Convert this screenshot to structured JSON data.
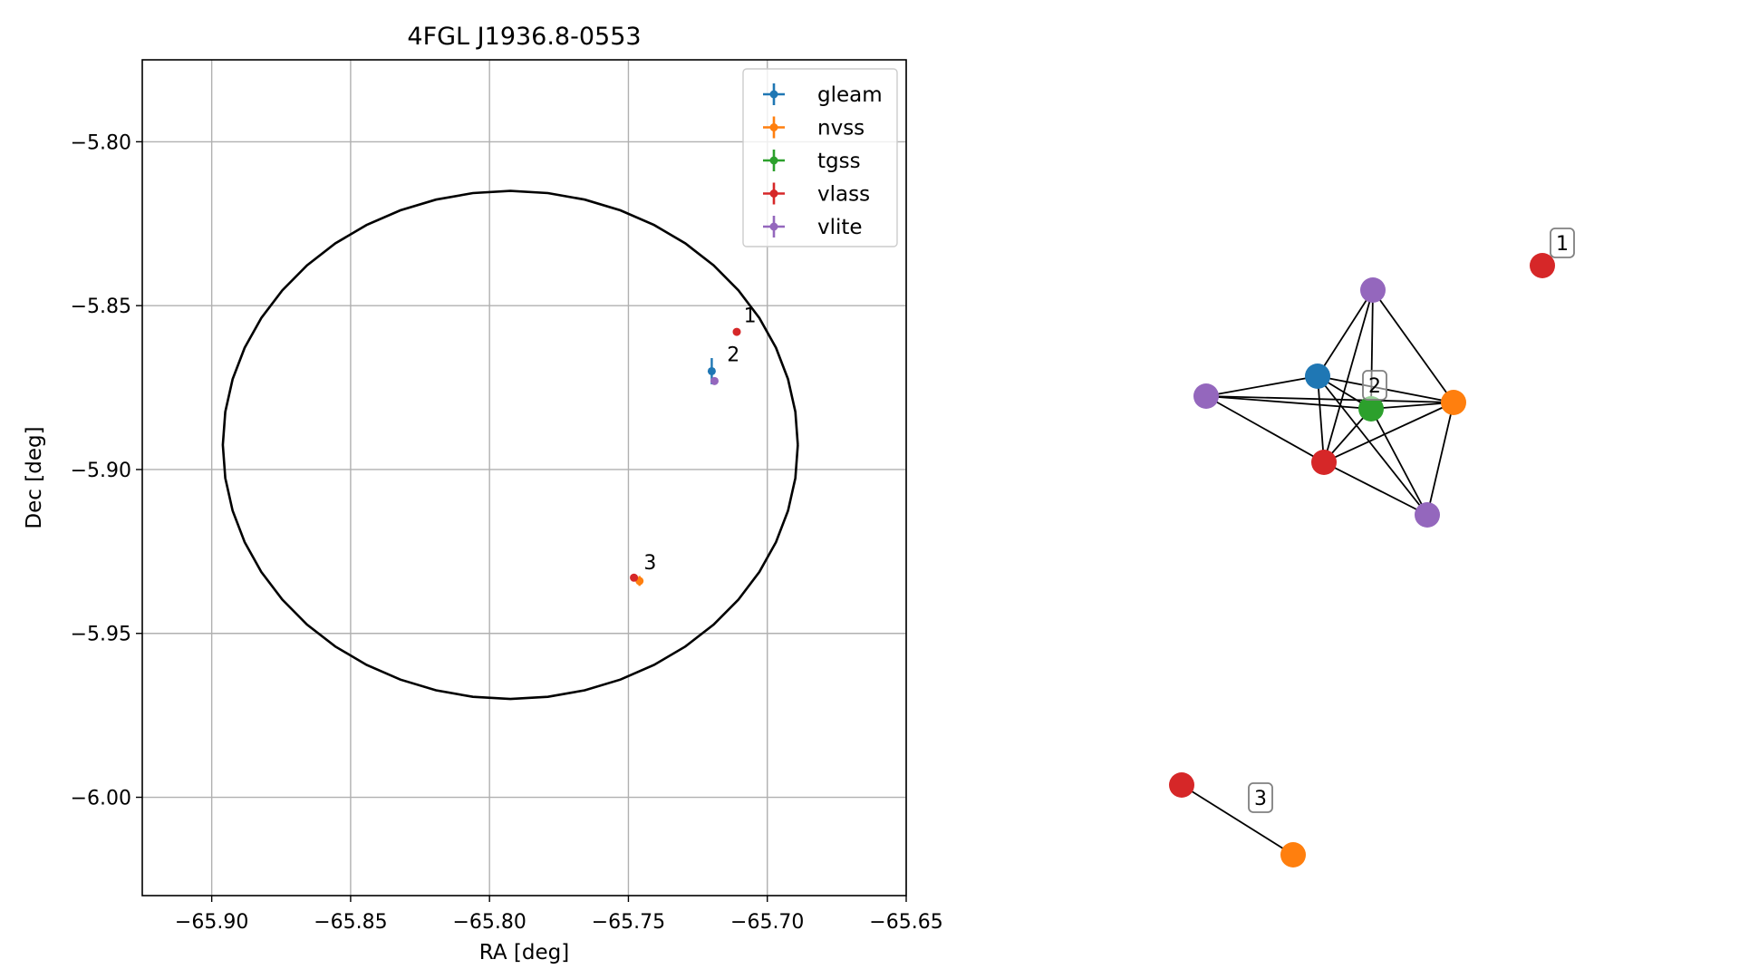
{
  "colors": {
    "gleam": "#1f77b4",
    "nvss": "#ff7f0e",
    "tgss": "#2ca02c",
    "vlass": "#d62728",
    "vlite": "#9467bd",
    "grid": "#b0b0b0",
    "edge": "#000000"
  },
  "chart_data": [
    {
      "type": "scatter",
      "title": "4FGL J1936.8-0553",
      "xlabel": "RA [deg]",
      "ylabel": "Dec [deg]",
      "xlim": [
        -65.925,
        -65.65
      ],
      "ylim": [
        -6.03,
        -5.775
      ],
      "grid": true,
      "legend_position": "top-right",
      "xticks": [
        -65.9,
        -65.85,
        -65.8,
        -65.75,
        -65.7,
        -65.65
      ],
      "xtick_labels": [
        "−65.90",
        "−65.85",
        "−65.80",
        "−65.75",
        "−65.70",
        "−65.65"
      ],
      "yticks": [
        -5.8,
        -5.85,
        -5.9,
        -5.95,
        -6.0
      ],
      "ytick_labels": [
        "−5.80",
        "−5.85",
        "−5.90",
        "−5.95",
        "−6.00"
      ],
      "ellipse": {
        "center": [
          -65.7925,
          -5.8925
        ],
        "semi_axis_ra": 0.1035,
        "semi_axis_dec": 0.0775
      },
      "series": [
        {
          "name": "gleam",
          "points": [
            {
              "x": -65.72,
              "y": -5.87,
              "yerr": 0.004
            }
          ]
        },
        {
          "name": "nvss",
          "points": [
            {
              "x": -65.746,
              "y": -5.934,
              "yerr": 0.0015
            }
          ]
        },
        {
          "name": "tgss",
          "points": []
        },
        {
          "name": "vlass",
          "points": [
            {
              "x": -65.711,
              "y": -5.858
            },
            {
              "x": -65.748,
              "y": -5.933
            }
          ]
        },
        {
          "name": "vlite",
          "points": [
            {
              "x": -65.719,
              "y": -5.873
            }
          ]
        }
      ],
      "annotations": [
        {
          "text": "1",
          "x": -65.7085,
          "y": -5.855
        },
        {
          "text": "2",
          "x": -65.7145,
          "y": -5.867
        },
        {
          "text": "3",
          "x": -65.7445,
          "y": -5.9305
        }
      ]
    },
    {
      "type": "network",
      "nodes": [
        {
          "id": "n1",
          "survey": "vlass"
        },
        {
          "id": "n2",
          "survey": "vlite"
        },
        {
          "id": "n3",
          "survey": "gleam"
        },
        {
          "id": "n4",
          "survey": "vlite"
        },
        {
          "id": "n5",
          "survey": "tgss"
        },
        {
          "id": "n6",
          "survey": "nvss"
        },
        {
          "id": "n7",
          "survey": "vlass"
        },
        {
          "id": "n8",
          "survey": "vlite"
        },
        {
          "id": "n9",
          "survey": "vlass"
        },
        {
          "id": "n10",
          "survey": "nvss"
        }
      ],
      "edges": [
        [
          "n2",
          "n3"
        ],
        [
          "n2",
          "n5"
        ],
        [
          "n2",
          "n6"
        ],
        [
          "n2",
          "n7"
        ],
        [
          "n3",
          "n4"
        ],
        [
          "n3",
          "n5"
        ],
        [
          "n3",
          "n6"
        ],
        [
          "n3",
          "n7"
        ],
        [
          "n3",
          "n8"
        ],
        [
          "n4",
          "n5"
        ],
        [
          "n4",
          "n6"
        ],
        [
          "n4",
          "n7"
        ],
        [
          "n5",
          "n6"
        ],
        [
          "n5",
          "n7"
        ],
        [
          "n5",
          "n8"
        ],
        [
          "n6",
          "n7"
        ],
        [
          "n6",
          "n8"
        ],
        [
          "n7",
          "n8"
        ],
        [
          "n9",
          "n10"
        ]
      ],
      "group_labels": [
        {
          "text": "1",
          "near": "n1"
        },
        {
          "text": "2",
          "near": "n5"
        },
        {
          "text": "3",
          "near": "n9"
        }
      ]
    }
  ]
}
